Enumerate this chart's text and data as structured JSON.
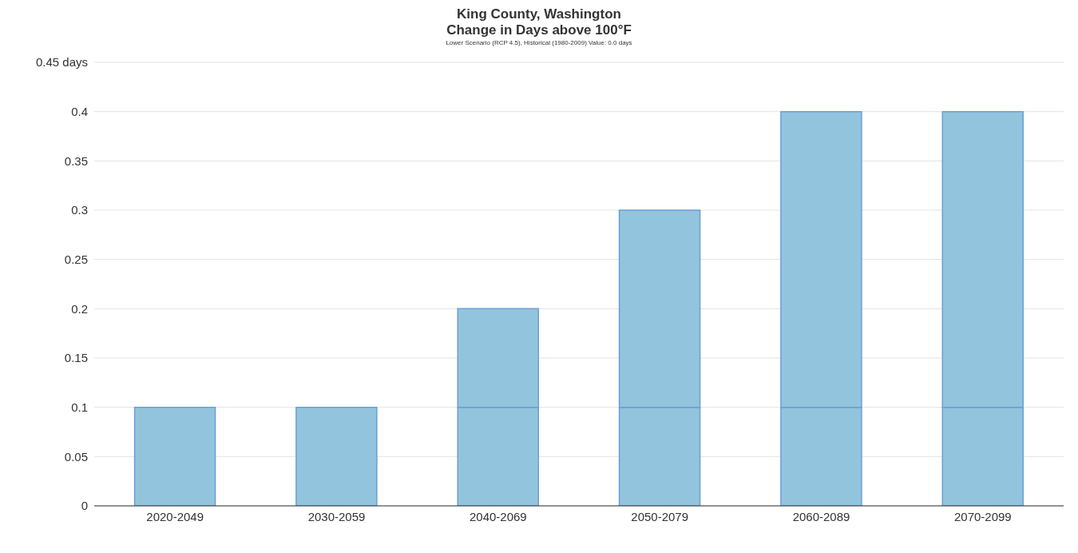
{
  "chart_data": {
    "type": "bar",
    "title": "King County, Washington\nChange in Days above 100°F",
    "subtitle": "Lower Scenario (RCP 4.5), Historical (1980-2009) Value: 0.0 days",
    "categories": [
      "2020-2049",
      "2030-2059",
      "2040-2069",
      "2050-2079",
      "2060-2089",
      "2070-2099"
    ],
    "stacked": true,
    "series": [
      {
        "color": "#92c4dd",
        "values": [
          0.1,
          0.1,
          0.1,
          0.1,
          0.1,
          0.1
        ]
      },
      {
        "color": "#92c4dd",
        "values": [
          0,
          0,
          0.1,
          0.2,
          0.3,
          0.3
        ]
      }
    ],
    "ylim": [
      0,
      0.45
    ],
    "yticks": [
      0,
      0.05,
      0.1,
      0.15,
      0.2,
      0.25,
      0.3,
      0.35,
      0.4,
      {
        "value": 0.45,
        "label": "0.45 days"
      }
    ],
    "grid": "y"
  }
}
